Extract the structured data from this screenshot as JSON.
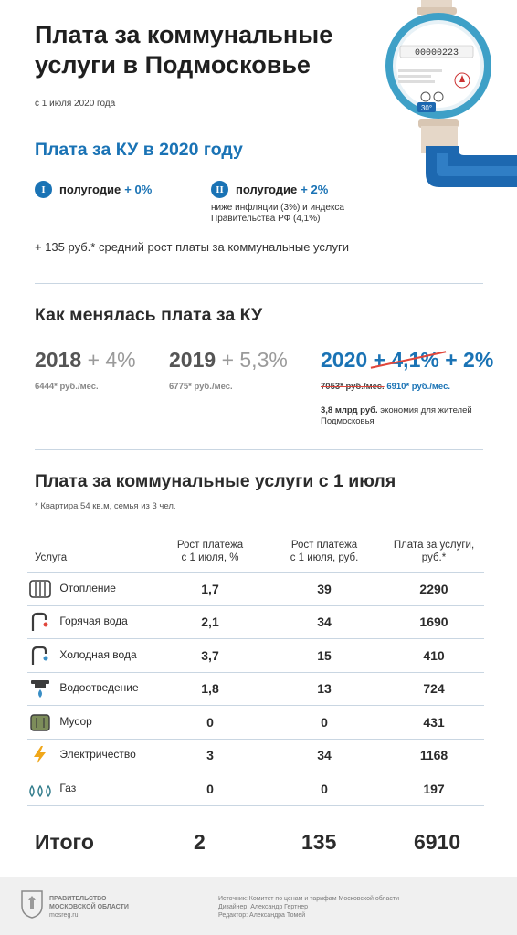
{
  "header": {
    "title_line1": "Плата за коммунальные",
    "title_line2": "услуги в Подмосковье",
    "date": "с 1 июля 2020 года"
  },
  "meter": {
    "digits": "00000223",
    "badge": "30°"
  },
  "ku2020": {
    "heading": "Плата за КУ в 2020 году",
    "half1": {
      "roman": "I",
      "label": "полугодие",
      "pct": "+ 0%"
    },
    "half2": {
      "roman": "II",
      "label": "полугодие",
      "pct": "+ 2%"
    },
    "note_line1": "ниже инфляции (3%) и индекса",
    "note_line2": "Правительства РФ (4,1%)",
    "avg": "+ 135 руб.* средний рост платы за коммунальные услуги"
  },
  "history": {
    "heading": "Как менялась плата за КУ",
    "y2018": {
      "year": "2018",
      "pct": "+ 4%",
      "sub": "6444* руб./мес."
    },
    "y2019": {
      "year": "2019",
      "pct": "+ 5,3%",
      "sub": "6775* руб./мес."
    },
    "y2020": {
      "year": "2020",
      "old_pct": "+ 4,1%",
      "new_pct": "+ 2%",
      "old_sum": "7053* руб./мес.",
      "new_sum": "6910* руб./мес.",
      "saving_bold": "3,8 млрд руб.",
      "saving_rest": "экономия для жителей",
      "saving_line2": "Подмосковья"
    }
  },
  "table": {
    "heading": "Плата за коммунальные услуги с 1 июля",
    "note": "* Квартира 54 кв.м, семья из 3 чел.",
    "headers": {
      "service": "Услуга",
      "growth_pct_1": "Рост платежа",
      "growth_pct_2": "с 1 июля, %",
      "growth_rub_1": "Рост платежа",
      "growth_rub_2": "с 1 июля, руб.",
      "fee_1": "Плата за услуги,",
      "fee_2": "руб.*"
    },
    "rows": [
      {
        "icon": "radiator-icon",
        "name": "Отопление",
        "pct": "1,7",
        "rub": "39",
        "fee": "2290"
      },
      {
        "icon": "hot-tap-icon",
        "name": "Горячая вода",
        "pct": "2,1",
        "rub": "34",
        "fee": "1690"
      },
      {
        "icon": "cold-tap-icon",
        "name": "Холодная вода",
        "pct": "3,7",
        "rub": "15",
        "fee": "410"
      },
      {
        "icon": "drain-icon",
        "name": "Водоотведение",
        "pct": "1,8",
        "rub": "13",
        "fee": "724"
      },
      {
        "icon": "trash-bin-icon",
        "name": "Мусор",
        "pct": "0",
        "rub": "0",
        "fee": "431"
      },
      {
        "icon": "lightning-icon",
        "name": "Электричество",
        "pct": "3",
        "rub": "34",
        "fee": "1168"
      },
      {
        "icon": "gas-flame-icon",
        "name": "Газ",
        "pct": "0",
        "rub": "0",
        "fee": "197"
      }
    ],
    "total": {
      "label": "Итого",
      "pct": "2",
      "rub": "135",
      "fee": "6910"
    }
  },
  "footer": {
    "org_line1": "ПРАВИТЕЛЬСТВО",
    "org_line2": "МОСКОВСКОЙ ОБЛАСТИ",
    "site": "mosreg.ru",
    "source": "Источник: Комитет по ценам и тарифам Московской области",
    "designer": "Дизайнер: Александр Гертнер",
    "editor": "Редактор: Александра Томей"
  },
  "colors": {
    "accent": "#1a73b5",
    "strike": "#e0463b",
    "icon": "#3c3c3c",
    "icon_fill": "#7d8d5a"
  }
}
